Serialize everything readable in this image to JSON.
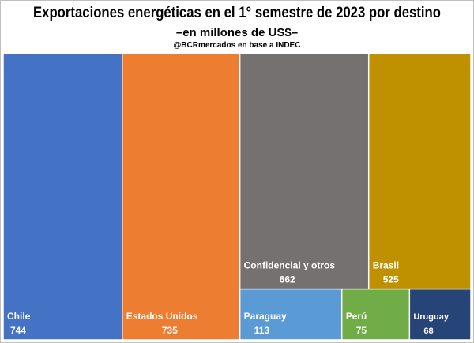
{
  "chart_data": {
    "type": "treemap",
    "title": "Exportaciones energéticas en el 1° semestre de 2023 por destino",
    "subtitle": "–en millones de US$–",
    "source": "@BCRmercados en base a INDEC",
    "items": [
      {
        "name": "Chile",
        "value": 744,
        "color": "#4472c4"
      },
      {
        "name": "Estados Unidos",
        "value": 735,
        "color": "#ed7d31"
      },
      {
        "name": "Confidencial y otros",
        "value": 662,
        "color": "#767171"
      },
      {
        "name": "Brasil",
        "value": 525,
        "color": "#bf9000"
      },
      {
        "name": "Paraguay",
        "value": 113,
        "color": "#5b9bd5"
      },
      {
        "name": "Perú",
        "value": 75,
        "color": "#70ad47"
      },
      {
        "name": "Uruguay",
        "value": 68,
        "color": "#264478"
      }
    ]
  }
}
